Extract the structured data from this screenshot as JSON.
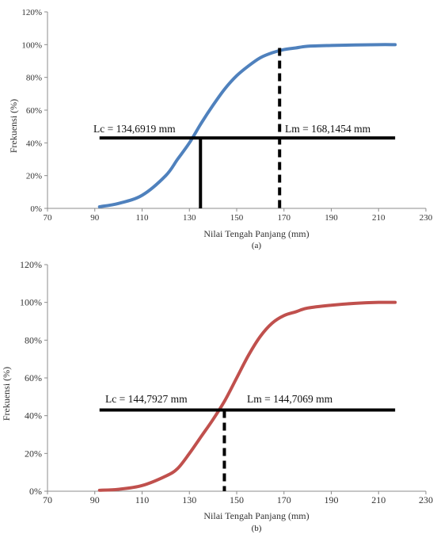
{
  "chart_data": [
    {
      "type": "line",
      "caption": "(a)",
      "xlabel": "Nilai Tengah  Panjang (mm)",
      "ylabel": "Frekuensi (%)",
      "xlim": [
        70,
        230
      ],
      "ylim": [
        0,
        120
      ],
      "x_ticks": [
        "70",
        "90",
        "110",
        "130",
        "150",
        "170",
        "190",
        "210",
        "230"
      ],
      "y_ticks": [
        "0%",
        "20%",
        "40%",
        "60%",
        "80%",
        "100%",
        "120%"
      ],
      "grid": false,
      "series": [
        {
          "color": "#4f81bd",
          "x": [
            92,
            100,
            110,
            120,
            125,
            130,
            135,
            140,
            145,
            150,
            155,
            160,
            165,
            170,
            175,
            180,
            190,
            200,
            210,
            217
          ],
          "y": [
            1,
            3,
            8,
            20,
            30,
            40,
            52,
            63,
            73,
            81,
            87,
            92,
            95,
            97,
            98,
            99,
            99.5,
            99.8,
            100,
            100
          ]
        }
      ],
      "horizontal_line": {
        "y": 43,
        "x_start": 92,
        "x_end": 217
      },
      "markers": [
        {
          "x": 134.6919,
          "y_top": 43,
          "style": "solid",
          "label": "Lc = 134,6919 mm"
        },
        {
          "x": 168.1454,
          "y_top": 98,
          "style": "dashed",
          "label": "Lm = 168,1454 mm"
        }
      ]
    },
    {
      "type": "line",
      "caption": "(b)",
      "xlabel": "Nilai Tengah  Panjang (mm)",
      "ylabel": "Frekuensi (%)",
      "xlim": [
        70,
        230
      ],
      "ylim": [
        0,
        120
      ],
      "x_ticks": [
        "70",
        "90",
        "110",
        "130",
        "150",
        "170",
        "190",
        "210",
        "230"
      ],
      "y_ticks": [
        "0%",
        "20%",
        "40%",
        "60%",
        "80%",
        "100%",
        "120%"
      ],
      "grid": false,
      "series": [
        {
          "color": "#c0504d",
          "x": [
            92,
            100,
            110,
            120,
            125,
            130,
            135,
            140,
            145,
            150,
            155,
            160,
            165,
            170,
            175,
            180,
            190,
            200,
            210,
            217
          ],
          "y": [
            0.5,
            1,
            3,
            8,
            12,
            20,
            29,
            38,
            48,
            60,
            72,
            82,
            89,
            93,
            95,
            97,
            98.5,
            99.5,
            100,
            100
          ]
        }
      ],
      "horizontal_line": {
        "y": 43,
        "x_start": 92,
        "x_end": 217
      },
      "markers": [
        {
          "x": 144.7927,
          "y_top": 43,
          "style": "dashed",
          "label": "Lc = 144,7927 mm"
        },
        {
          "x": 144.7069,
          "y_top": 43,
          "style": "none",
          "label": "Lm = 144,7069 mm"
        }
      ]
    }
  ]
}
